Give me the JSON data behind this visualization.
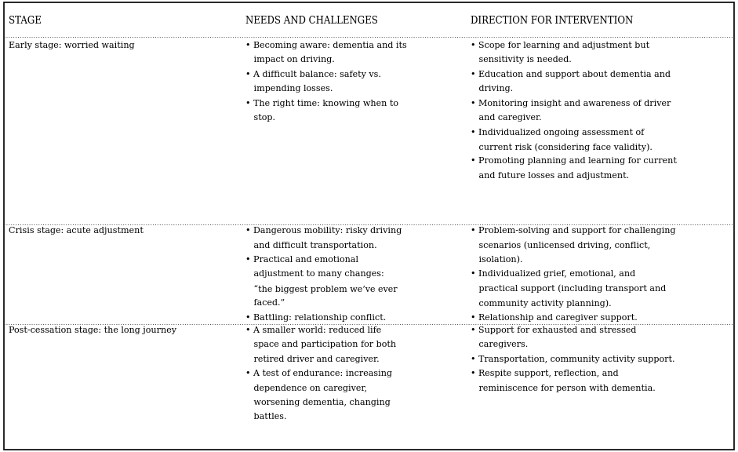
{
  "headers": [
    "STAGE",
    "NEEDS AND CHALLENGES",
    "DIRECTION FOR INTERVENTION"
  ],
  "bg_color": "#ffffff",
  "border_color": "#000000",
  "header_color": "#000000",
  "text_color": "#000000",
  "header_fontsize": 8.5,
  "body_fontsize": 8.0,
  "font_family": "serif",
  "rows": [
    {
      "stage": "Early stage: worried waiting",
      "needs": [
        [
          "Becoming aware: dementia and its",
          "   impact on driving."
        ],
        [
          "A difficult balance: safety vs.",
          "   impending losses."
        ],
        [
          "The right time: knowing when to",
          "   stop."
        ]
      ],
      "direction": [
        [
          "Scope for learning and adjustment but",
          "   sensitivity is needed."
        ],
        [
          "Education and support about dementia and",
          "   driving."
        ],
        [
          "Monitoring insight and awareness of driver",
          "   and caregiver."
        ],
        [
          "Individualized ongoing assessment of",
          "   current risk (considering face validity)."
        ],
        [
          "Promoting planning and learning for current",
          "   and future losses and adjustment."
        ]
      ]
    },
    {
      "stage": "Crisis stage: acute adjustment",
      "needs": [
        [
          "Dangerous mobility: risky driving",
          "   and difficult transportation."
        ],
        [
          "Practical and emotional",
          "   adjustment to many changes:",
          "   “the biggest problem we’ve ever",
          "   faced.”"
        ],
        [
          "Battling: relationship conflict."
        ]
      ],
      "direction": [
        [
          "Problem-solving and support for challenging",
          "   scenarios (unlicensed driving, conflict,",
          "   isolation)."
        ],
        [
          "Individualized grief, emotional, and",
          "   practical support (including transport and",
          "   community activity planning)."
        ],
        [
          "Relationship and caregiver support."
        ]
      ]
    },
    {
      "stage": "Post-cessation stage: the long journey",
      "needs": [
        [
          "A smaller world: reduced life",
          "   space and participation for both",
          "   retired driver and caregiver."
        ],
        [
          "A test of endurance: increasing",
          "   dependence on caregiver,",
          "   worsening dementia, changing",
          "   battles."
        ]
      ],
      "direction": [
        [
          "Support for exhausted and stressed",
          "   caregivers."
        ],
        [
          "Transportation, community activity support."
        ],
        [
          "Respite support, reflection, and",
          "   reminiscence for person with dementia."
        ]
      ]
    }
  ]
}
